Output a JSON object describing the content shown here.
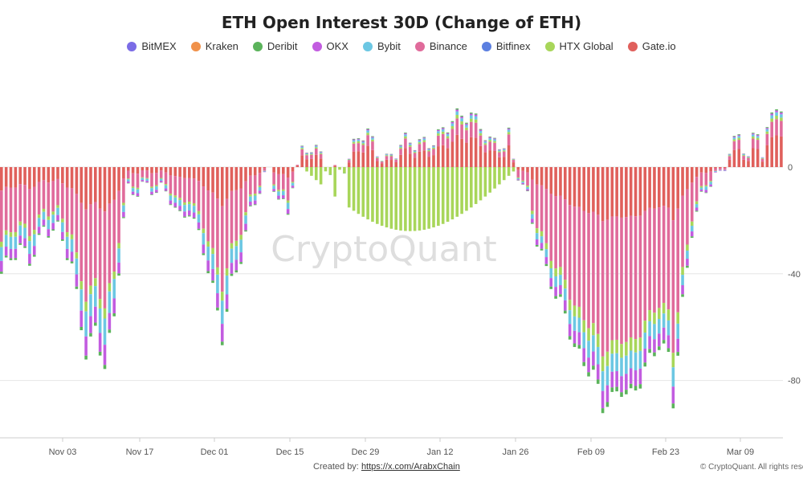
{
  "chart_data": {
    "type": "bar",
    "title": "ETH Open Interest 30D (Change of ETH)",
    "stacked": true,
    "x_ticks": [
      "Nov 03",
      "Nov 17",
      "Dec 01",
      "Dec 15",
      "Dec 29",
      "Jan 12",
      "Jan 26",
      "Feb 09",
      "Feb 23",
      "Mar 09"
    ],
    "y_ticks": [
      "0",
      "-40",
      "-80"
    ],
    "ylim": [
      -106,
      32
    ],
    "grid": true,
    "legend_position": "top",
    "watermark": "CryptoQuant",
    "series": [
      {
        "name": "BitMEX",
        "color": "#7b6ce6"
      },
      {
        "name": "Kraken",
        "color": "#f0914a"
      },
      {
        "name": "Deribit",
        "color": "#5bb35b"
      },
      {
        "name": "OKX",
        "color": "#c25ce0"
      },
      {
        "name": "Bybit",
        "color": "#6cc7e3"
      },
      {
        "name": "Binance",
        "color": "#e06b9b"
      },
      {
        "name": "Bitfinex",
        "color": "#5b7fe0"
      },
      {
        "name": "HTX Global",
        "color": "#a8d65a"
      },
      {
        "name": "Gate.io",
        "color": "#e0605c"
      }
    ],
    "keypoints_total": [
      [
        0,
        -40
      ],
      [
        4,
        -32
      ],
      [
        6,
        -34
      ],
      [
        9,
        -22
      ],
      [
        12,
        -25
      ],
      [
        15,
        -38
      ],
      [
        18,
        -68
      ],
      [
        20,
        -60
      ],
      [
        22,
        -76
      ],
      [
        24,
        -58
      ],
      [
        26,
        -20
      ],
      [
        27,
        -8
      ],
      [
        30,
        -6
      ],
      [
        33,
        -10
      ],
      [
        36,
        -12
      ],
      [
        38,
        -18
      ],
      [
        40,
        -14
      ],
      [
        43,
        -32
      ],
      [
        45,
        -48
      ],
      [
        47,
        -64
      ],
      [
        49,
        -42
      ],
      [
        51,
        -32
      ],
      [
        53,
        -18
      ],
      [
        55,
        -10
      ],
      [
        57,
        -2
      ],
      [
        59,
        -10
      ],
      [
        61,
        -16
      ],
      [
        62,
        -4
      ],
      [
        64,
        4
      ],
      [
        66,
        6
      ],
      [
        68,
        4
      ],
      [
        70,
        0
      ],
      [
        72,
        0
      ],
      [
        74,
        2
      ],
      [
        76,
        10
      ],
      [
        78,
        12
      ],
      [
        80,
        8
      ],
      [
        82,
        4
      ],
      [
        84,
        6
      ],
      [
        86,
        8
      ],
      [
        88,
        8
      ],
      [
        90,
        10
      ],
      [
        92,
        12
      ],
      [
        94,
        14
      ],
      [
        96,
        16
      ],
      [
        98,
        18
      ],
      [
        100,
        20
      ],
      [
        102,
        18
      ],
      [
        104,
        10
      ],
      [
        106,
        8
      ],
      [
        107,
        6
      ],
      [
        108,
        10
      ],
      [
        109,
        2
      ],
      [
        110,
        -2
      ],
      [
        111,
        -6
      ],
      [
        112,
        -10
      ],
      [
        114,
        -26
      ],
      [
        116,
        -40
      ],
      [
        118,
        -50
      ],
      [
        120,
        -56
      ],
      [
        122,
        -66
      ],
      [
        124,
        -72
      ],
      [
        126,
        -78
      ],
      [
        128,
        -92
      ],
      [
        130,
        -88
      ],
      [
        132,
        -82
      ],
      [
        134,
        -84
      ],
      [
        136,
        -80
      ],
      [
        138,
        -74
      ],
      [
        140,
        -68
      ],
      [
        142,
        -70
      ],
      [
        143,
        -86
      ],
      [
        145,
        -50
      ],
      [
        147,
        -24
      ],
      [
        149,
        -14
      ],
      [
        151,
        -6
      ],
      [
        153,
        -2
      ],
      [
        155,
        8
      ],
      [
        157,
        12
      ],
      [
        159,
        2
      ],
      [
        160,
        8
      ],
      [
        161,
        12
      ],
      [
        162,
        6
      ],
      [
        163,
        14
      ],
      [
        164,
        20
      ],
      [
        165,
        26
      ],
      [
        166,
        24
      ]
    ]
  },
  "footer": {
    "created_label": "Created by:",
    "created_link": "https://x.com/ArabxChain",
    "copyright": "© CryptoQuant. All rights reserved."
  }
}
